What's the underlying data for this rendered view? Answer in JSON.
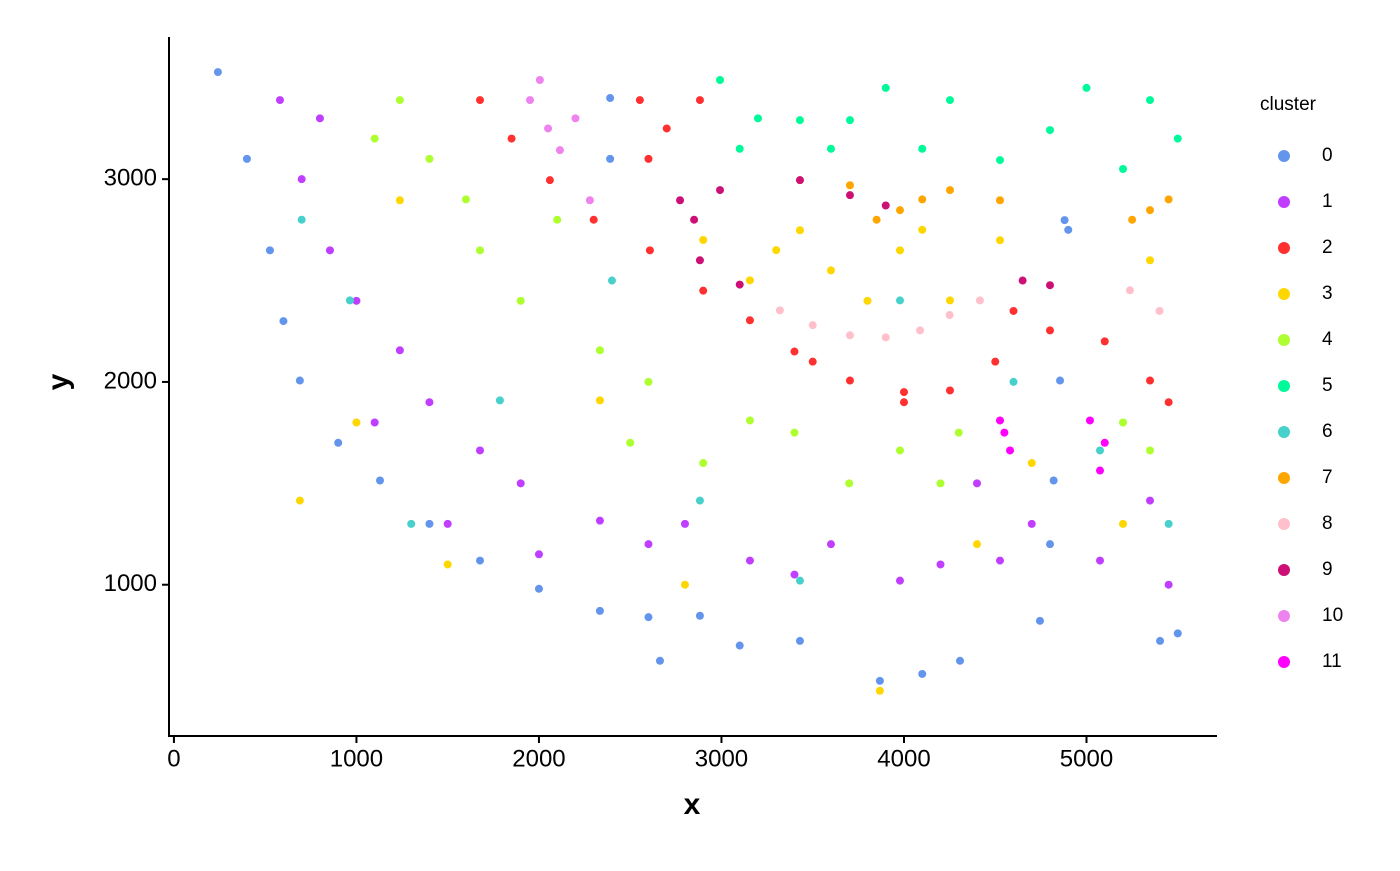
{
  "chart_data": {
    "type": "scatter",
    "xlabel": "x",
    "ylabel": "y",
    "legend_title": "cluster",
    "xlim": [
      -27,
      5715
    ],
    "ylim": [
      254,
      3701
    ],
    "xticks": [
      0,
      1000,
      2000,
      3000,
      4000,
      5000
    ],
    "yticks": [
      1000,
      2000,
      3000
    ],
    "grid": false,
    "legend": "right",
    "series": [
      {
        "name": "0",
        "color": "#6495ED",
        "x": [
          241,
          400,
          526,
          600,
          690,
          900,
          1129,
          1400,
          1677,
          2000,
          2334,
          2600,
          2882,
          2663,
          3100,
          3430,
          3868,
          4100,
          4307,
          4745,
          4800,
          4820,
          4855,
          4880,
          4900,
          5403,
          5500,
          2390,
          2390
        ],
        "y": [
          3528,
          3100,
          2649,
          2300,
          2007,
          1700,
          1514,
          1300,
          1119,
          980,
          871,
          840,
          847,
          625,
          700,
          723,
          526,
          560,
          625,
          822,
          1200,
          1514,
          2007,
          2798,
          2750,
          723,
          760,
          3400,
          3100
        ]
      },
      {
        "name": "1",
        "color": "#BF3EFF",
        "x": [
          581,
          700,
          855,
          1000,
          1238,
          1400,
          1677,
          1900,
          2334,
          2600,
          3156,
          3400,
          3978,
          4200,
          4526,
          4700,
          5074,
          5348,
          5450,
          800,
          1100,
          1500,
          2000,
          2800,
          3600,
          4400
        ],
        "y": [
          3390,
          3000,
          2649,
          2400,
          2156,
          1900,
          1662,
          1500,
          1316,
          1200,
          1119,
          1050,
          1020,
          1100,
          1119,
          1300,
          1119,
          1415,
          1000,
          3300,
          1800,
          1300,
          1150,
          1300,
          1200,
          1500
        ]
      },
      {
        "name": "2",
        "color": "#FF3030",
        "x": [
          1677,
          1850,
          2060,
          2300,
          2608,
          2900,
          3156,
          3400,
          3704,
          4000,
          4252,
          4500,
          4800,
          5100,
          5348,
          5450,
          2553,
          2700,
          2882,
          2600,
          3500,
          4000,
          4600
        ],
        "y": [
          3390,
          3200,
          2995,
          2800,
          2649,
          2450,
          2304,
          2150,
          2007,
          1950,
          1958,
          2100,
          2254,
          2200,
          2007,
          1900,
          3390,
          3250,
          3390,
          3100,
          2100,
          1900,
          2350
        ]
      },
      {
        "name": "3",
        "color": "#FFD700",
        "x": [
          3430,
          3978,
          3156,
          4252,
          4526,
          5348,
          3868,
          1238,
          2334,
          690,
          3600,
          3800,
          4100,
          2900,
          4700,
          5200,
          1500,
          2800,
          1000,
          4400,
          3300
        ],
        "y": [
          2748,
          2649,
          2501,
          2402,
          2699,
          2600,
          477,
          2896,
          1909,
          1415,
          2550,
          2400,
          2750,
          2700,
          1600,
          1300,
          1100,
          1000,
          1800,
          1200,
          2650
        ]
      },
      {
        "name": "4",
        "color": "#ADFF2F",
        "x": [
          1238,
          1400,
          1677,
          1900,
          2334,
          2600,
          3156,
          3400,
          3978,
          4200,
          4526,
          5348,
          1100,
          2100,
          2900,
          3700,
          4300,
          5200,
          1600,
          2500
        ],
        "y": [
          3390,
          3100,
          2649,
          2400,
          2156,
          2000,
          1810,
          1750,
          1662,
          1500,
          1810,
          1662,
          3200,
          2800,
          1600,
          1500,
          1750,
          1800,
          2900,
          1700
        ]
      },
      {
        "name": "5",
        "color": "#00FA9A",
        "x": [
          2992,
          3200,
          3430,
          3704,
          3900,
          4252,
          4526,
          4800,
          5000,
          5348,
          5500,
          3100,
          3600,
          4100,
          5200
        ],
        "y": [
          3489,
          3300,
          3291,
          3291,
          3450,
          3390,
          3094,
          3242,
          3450,
          3390,
          3200,
          3150,
          3150,
          3150,
          3050
        ]
      },
      {
        "name": "6",
        "color": "#48D1CC",
        "x": [
          964,
          1786,
          2882,
          3978,
          5074,
          3430,
          1300,
          2400,
          4600,
          5450,
          700
        ],
        "y": [
          2402,
          1909,
          1415,
          2402,
          1662,
          1020,
          1300,
          2500,
          2000,
          1300,
          2800
        ]
      },
      {
        "name": "7",
        "color": "#FFA500",
        "x": [
          3430,
          3704,
          3978,
          4252,
          4526,
          5348,
          5250,
          5450,
          3850,
          4100
        ],
        "y": [
          2995,
          2970,
          2847,
          2946,
          2896,
          2847,
          2800,
          2900,
          2800,
          2900
        ]
      },
      {
        "name": "8",
        "color": "#FFC0CB",
        "x": [
          3320,
          3500,
          3704,
          3900,
          4088,
          4250,
          4416,
          5238,
          5400
        ],
        "y": [
          2353,
          2280,
          2230,
          2220,
          2254,
          2330,
          2402,
          2452,
          2350
        ]
      },
      {
        "name": "9",
        "color": "#CD1076",
        "x": [
          2773,
          2850,
          2992,
          2882,
          3100,
          3430,
          3704,
          3900,
          4800,
          4650
        ],
        "y": [
          2896,
          2800,
          2946,
          2600,
          2480,
          2995,
          2921,
          2870,
          2477,
          2500
        ]
      },
      {
        "name": "10",
        "color": "#EE82EE",
        "x": [
          1951,
          2005,
          2115,
          2200,
          2279,
          2050
        ],
        "y": [
          3390,
          3489,
          3143,
          3300,
          2896,
          3250
        ]
      },
      {
        "name": "11",
        "color": "#FF00FF",
        "x": [
          4526,
          4581,
          5019,
          5074,
          4550,
          5100
        ],
        "y": [
          1810,
          1662,
          1810,
          1563,
          1750,
          1700
        ]
      }
    ]
  }
}
